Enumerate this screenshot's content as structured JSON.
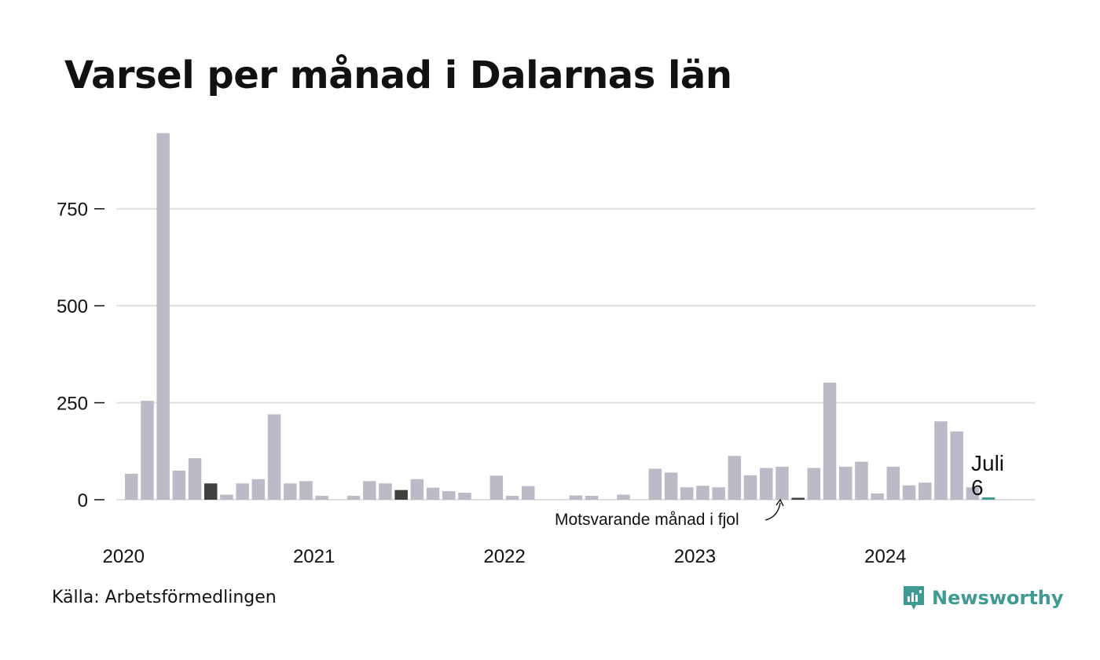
{
  "title": "Varsel per månad i Dalarnas län",
  "source": "Källa: Arbetsförmedlingen",
  "brand": "Newsworthy",
  "annotation": "Motsvarande månad i fjol",
  "colors": {
    "bar": "#bbbac6",
    "highlight": "#404040",
    "current": "#3f9a93",
    "grid": "#e0e0e0",
    "brand": "#3f9a93"
  },
  "chart_data": {
    "type": "bar",
    "title": "Varsel per månad i Dalarnas län",
    "ylim": [
      0,
      950
    ],
    "yticks": [
      0,
      250,
      500,
      750
    ],
    "x_labels": [
      "2020",
      "2021",
      "2022",
      "2023",
      "2024"
    ],
    "start": "2020-01",
    "values": [
      67,
      255,
      945,
      75,
      107,
      42,
      13,
      42,
      53,
      220,
      42,
      48,
      10,
      0,
      10,
      48,
      42,
      25,
      53,
      31,
      22,
      18,
      0,
      62,
      10,
      35,
      0,
      0,
      11,
      10,
      0,
      13,
      0,
      80,
      70,
      32,
      36,
      32,
      113,
      63,
      82,
      85,
      5,
      82,
      302,
      85,
      98,
      16,
      85,
      37,
      44,
      202,
      176,
      32,
      6
    ],
    "highlighted": [
      5,
      17,
      42
    ],
    "current_index": 54,
    "current_label": "Juli",
    "current_value": "6"
  }
}
